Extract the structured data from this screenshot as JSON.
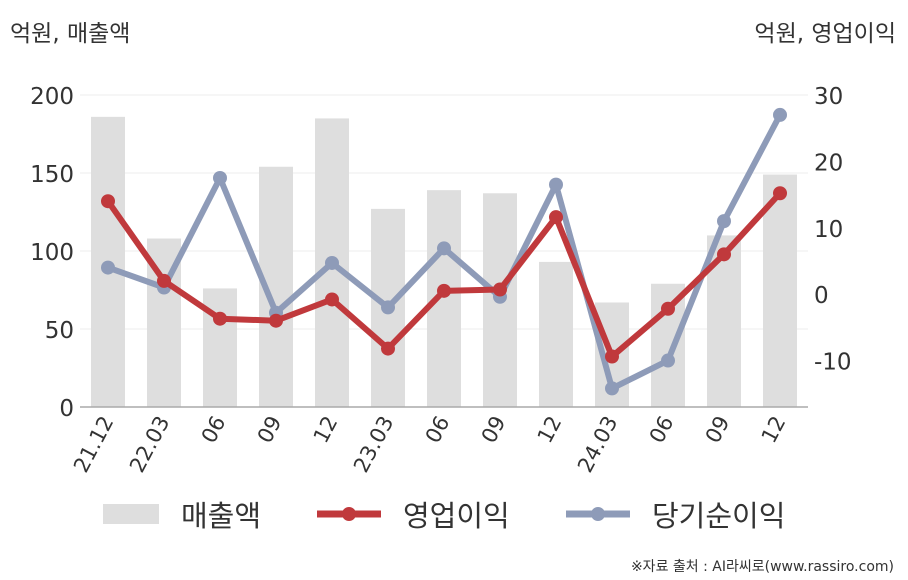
{
  "chart_data": {
    "type": "bar+line",
    "left_unit": "억원, 매출액",
    "right_unit": "억원, 영업이익",
    "categories": [
      "21.12",
      "22.03",
      "06",
      "09",
      "12",
      "23.03",
      "06",
      "09",
      "12",
      "24.03",
      "06",
      "09",
      "12"
    ],
    "left_axis": {
      "ticks": [
        "0",
        "50",
        "100",
        "150",
        "200"
      ],
      "range": [
        0,
        200
      ]
    },
    "right_axis": {
      "ticks": [
        "-10",
        "0",
        "10",
        "20",
        "30"
      ],
      "range": [
        -17,
        30
      ]
    },
    "grid": true,
    "legend_position": "bottom",
    "series": [
      {
        "name": "매출액",
        "kind": "bar",
        "axis": "left",
        "color": "#dedede",
        "values": [
          186,
          108,
          76,
          154,
          185,
          127,
          139,
          137,
          93,
          67,
          79,
          110,
          149
        ]
      },
      {
        "name": "영업이익",
        "kind": "line",
        "axis": "right",
        "color": "#c0393c",
        "values": [
          14,
          2,
          -3.7,
          -4,
          -0.8,
          -8.2,
          0.5,
          0.7,
          11.6,
          -9.4,
          -2.2,
          6,
          15.2
        ]
      },
      {
        "name": "당기순이익",
        "kind": "line",
        "axis": "right",
        "color": "#8e9bb8",
        "values": [
          4,
          1,
          17.5,
          -2.8,
          4.7,
          -2,
          6.9,
          -0.4,
          16.5,
          -14.2,
          -10,
          11,
          27
        ]
      }
    ]
  },
  "source": "※자료 출처 : AI라씨로(www.rassiro.com)"
}
